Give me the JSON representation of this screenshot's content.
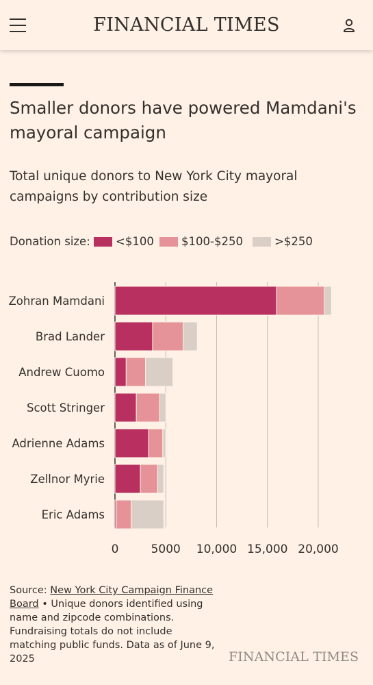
{
  "header": {
    "logo": "FINANCIAL TIMES",
    "menu_icon": "hamburger-menu-icon",
    "user_icon": "user-account-icon"
  },
  "colors": {
    "background": "#fff1e5",
    "under_100": "#b7305f",
    "100_250": "#e59399",
    "over_250": "#dacfc6",
    "gridline": "#c5bab1"
  },
  "legend": {
    "title": "Donation size:",
    "items": [
      "<$100",
      "$100-$250",
      ">$250"
    ]
  },
  "chart_data": {
    "type": "bar",
    "orientation": "horizontal",
    "stacked": true,
    "title": "Smaller donors have powered Mamdani's mayoral campaign",
    "subtitle": "Total unique donors to New York City mayoral campaigns by contribution size",
    "categories": [
      "Zohran Mamdani",
      "Brad Lander",
      "Andrew Cuomo",
      "Scott Stringer",
      "Adrienne Adams",
      "Zellnor Myrie",
      "Eric Adams"
    ],
    "series": [
      {
        "name": "<$100",
        "values": [
          15900,
          3700,
          1100,
          2100,
          3300,
          2500,
          150
        ]
      },
      {
        "name": "$100-$250",
        "values": [
          4700,
          3000,
          1900,
          2300,
          1400,
          1700,
          1450
        ]
      },
      {
        "name": ">$250",
        "values": [
          700,
          1400,
          2700,
          600,
          300,
          600,
          3200
        ]
      }
    ],
    "xlim": [
      0,
      22000
    ],
    "xticks": [
      0,
      5000,
      10000,
      15000,
      20000
    ],
    "xtick_labels": [
      "0",
      "5000",
      "10,000",
      "15,000",
      "20,000"
    ],
    "grid": "vertical",
    "legend": "top"
  },
  "footer": {
    "source_prefix": "Source: ",
    "source_link": "New York City Campaign Finance Board",
    "note": " • Unique donors identified using name and zipcode combinations. Fundraising totals do not include matching public funds. Data as of June 9, 2025",
    "brand": "FINANCIAL TIMES"
  }
}
